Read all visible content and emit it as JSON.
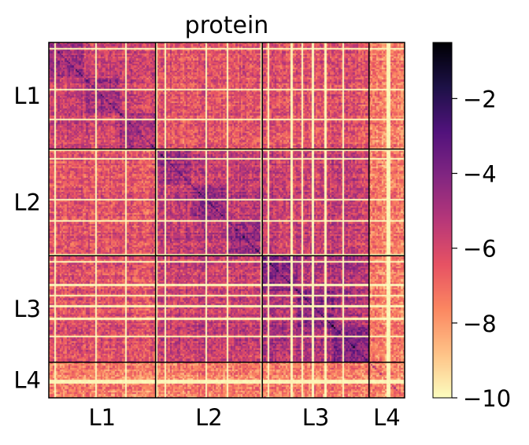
{
  "chart_data": {
    "type": "heatmap",
    "title": "protein",
    "xlabel": "",
    "ylabel": "",
    "blocks": [
      "L1",
      "L2",
      "L3",
      "L4"
    ],
    "block_fractions": [
      0.3,
      0.3,
      0.3,
      0.1
    ],
    "color_scale": {
      "min": -10,
      "max": -0.5,
      "ticks": [
        -2,
        -4,
        -6,
        -8,
        -10
      ],
      "tick_labels": [
        "−2",
        "−4",
        "−6",
        "−8",
        "−10"
      ],
      "colormap": "magma_r",
      "stops": [
        "#fcfdbf",
        "#fec287",
        "#fb8761",
        "#e75263",
        "#b73779",
        "#822681",
        "#51127c",
        "#1d1147",
        "#000004"
      ]
    },
    "block_mean_values": [
      [
        -5.8,
        -6.4,
        -6.3,
        -7.4
      ],
      [
        -6.4,
        -5.5,
        -5.7,
        -7.4
      ],
      [
        -6.3,
        -5.7,
        -5.1,
        -7.4
      ],
      [
        -7.4,
        -7.4,
        -7.4,
        -7.6
      ]
    ],
    "notes": "Within-block diagonal sub-blocks are darker (higher log-values); faint white streaks mark low-value rows/columns."
  }
}
